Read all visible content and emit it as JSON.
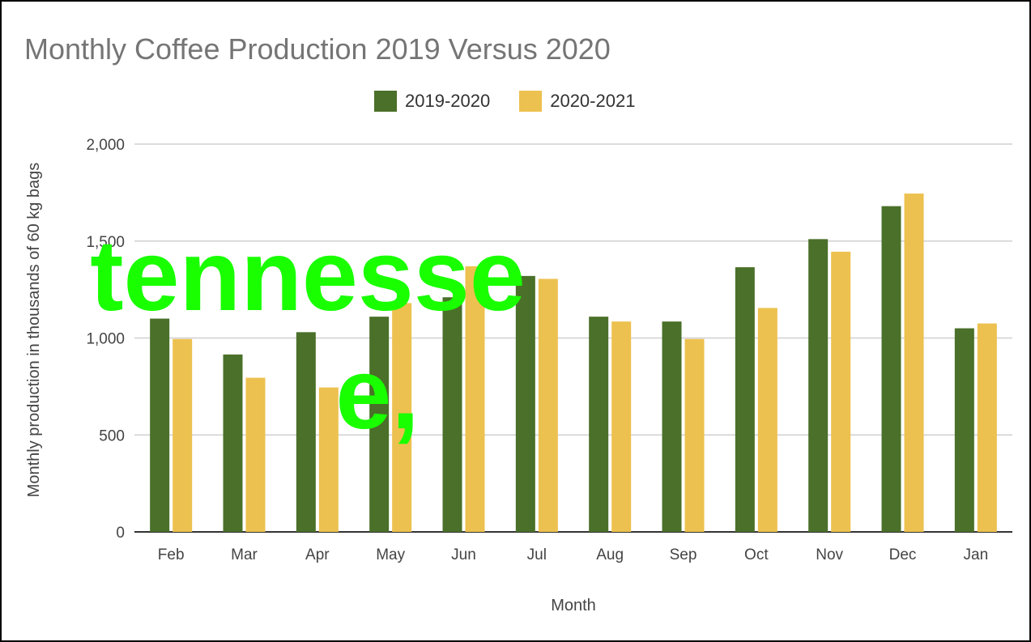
{
  "chart_data": {
    "type": "bar",
    "title": "Monthly Coffee Production 2019 Versus 2020",
    "xlabel": "Month",
    "ylabel": "Monthly production in thousands of 60 kg bags",
    "ylim": [
      0,
      2000
    ],
    "yticks": [
      "0",
      "500",
      "1,000",
      "1,500",
      "2,000"
    ],
    "ytick_values": [
      0,
      500,
      1000,
      1500,
      2000
    ],
    "grid": true,
    "legend_position": "top",
    "categories": [
      "Feb",
      "Mar",
      "Apr",
      "May",
      "Jun",
      "Jul",
      "Aug",
      "Sep",
      "Oct",
      "Nov",
      "Dec",
      "Jan"
    ],
    "series": [
      {
        "name": "2019-2020",
        "color": "#4a7029",
        "values": [
          1100,
          915,
          1030,
          1110,
          1210,
          1320,
          1110,
          1085,
          1365,
          1510,
          1680,
          1050
        ]
      },
      {
        "name": "2020-2021",
        "color": "#ecc14f",
        "values": [
          995,
          795,
          745,
          1180,
          1370,
          1305,
          1085,
          995,
          1155,
          1445,
          1745,
          1075
        ]
      }
    ]
  },
  "overlay": {
    "text": "tennesse\n     e,",
    "color": "#19ff00"
  }
}
